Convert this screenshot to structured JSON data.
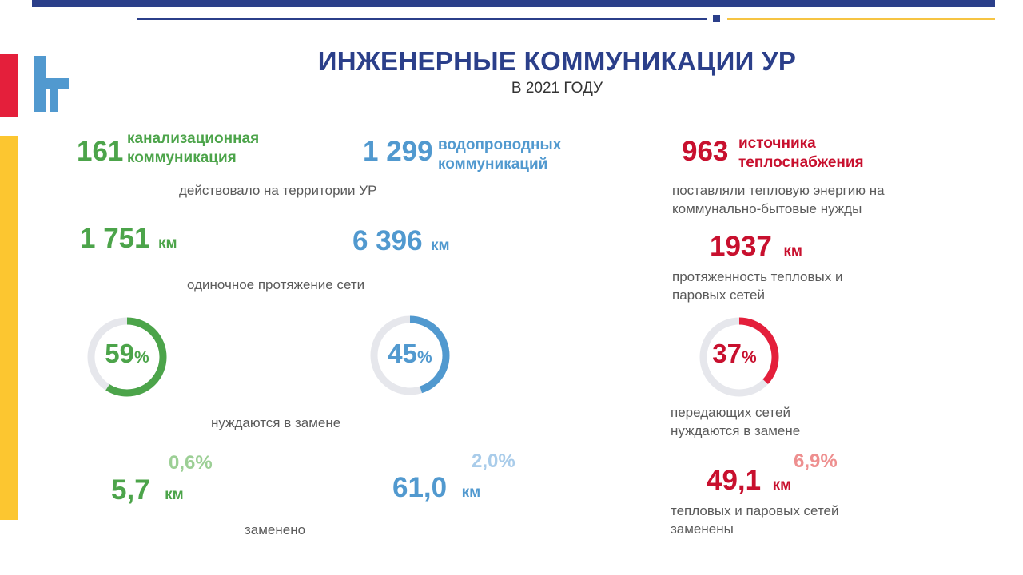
{
  "header": {
    "title": "ИНЖЕНЕРНЫЕ КОММУНИКАЦИИ УР",
    "subtitle": "В 2021 ГОДУ"
  },
  "sewer": {
    "count": "161",
    "label_line1": "канализационная",
    "label_line2": "коммуникация",
    "length": "1 751",
    "length_unit": "км",
    "need_replace_pct": 59,
    "need_replace_value": "59",
    "pct_sign": "%",
    "replaced_km": "5,7",
    "replaced_unit": "км",
    "replaced_pct": "0,6%"
  },
  "water": {
    "count": "1 299",
    "label_line1": "водопроводных",
    "label_line2": "коммуникаций",
    "length": "6 396",
    "length_unit": "км",
    "need_replace_pct": 45,
    "need_replace_value": "45",
    "pct_sign": "%",
    "replaced_km": "61,0",
    "replaced_unit": "км",
    "replaced_pct": "2,0%"
  },
  "heat": {
    "count": "963",
    "label_line1": "источника",
    "label_line2": "теплоснабжения",
    "desc_line1": "поставляли тепловую энергию на",
    "desc_line2": "коммунально-бытовые нужды",
    "length": "1937",
    "length_unit": "км",
    "length_desc_line1": "протяженность тепловых и",
    "length_desc_line2": "паровых сетей",
    "need_replace_pct": 37,
    "need_replace_value": "37",
    "pct_sign": "%",
    "need_desc_line1": "передающих сетей",
    "need_desc_line2": "нуждаются в замене",
    "replaced_km": "49,1",
    "replaced_unit": "км",
    "replaced_pct": "6,9%",
    "replaced_desc_line1": "тепловых и паровых сетей",
    "replaced_desc_line2": "заменены"
  },
  "shared": {
    "operated": "действовало на территории УР",
    "network_length": "одиночное протяжение сети",
    "need_replacement": "нуждаются в замене",
    "replaced": "заменено"
  },
  "colors": {
    "navy": "#2b3f8a",
    "green": "#4ca44a",
    "blue": "#5199cf",
    "red": "#c8102e",
    "ring_track": "#e6e7ec"
  }
}
